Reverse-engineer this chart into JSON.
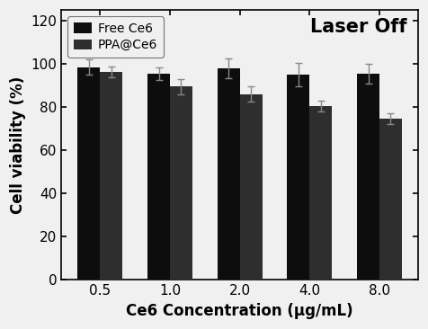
{
  "categories": [
    "0.5",
    "1.0",
    "2.0",
    "4.0",
    "8.0"
  ],
  "free_ce6_values": [
    98.5,
    95.5,
    98.0,
    95.0,
    95.5
  ],
  "ppa_ce6_values": [
    96.5,
    89.5,
    86.0,
    80.5,
    74.5
  ],
  "free_ce6_errors": [
    3.5,
    3.0,
    4.5,
    5.5,
    4.5
  ],
  "ppa_ce6_errors": [
    2.5,
    3.5,
    3.5,
    2.5,
    2.5
  ],
  "free_ce6_color": "#0d0d0d",
  "ppa_ce6_color": "#2e2e2e",
  "ylabel": "Cell viability (%)",
  "xlabel": "Ce6 Concentration (μg/mL)",
  "ylim": [
    0,
    125
  ],
  "yticks": [
    0,
    20,
    40,
    60,
    80,
    100,
    120
  ],
  "annotation": "Laser Off",
  "legend_labels": [
    "Free Ce6",
    "PPA@Ce6"
  ],
  "bar_width": 0.32,
  "label_fontsize": 12,
  "tick_fontsize": 11,
  "annotation_fontsize": 15,
  "legend_fontsize": 10,
  "background_color": "#f0f0f0"
}
